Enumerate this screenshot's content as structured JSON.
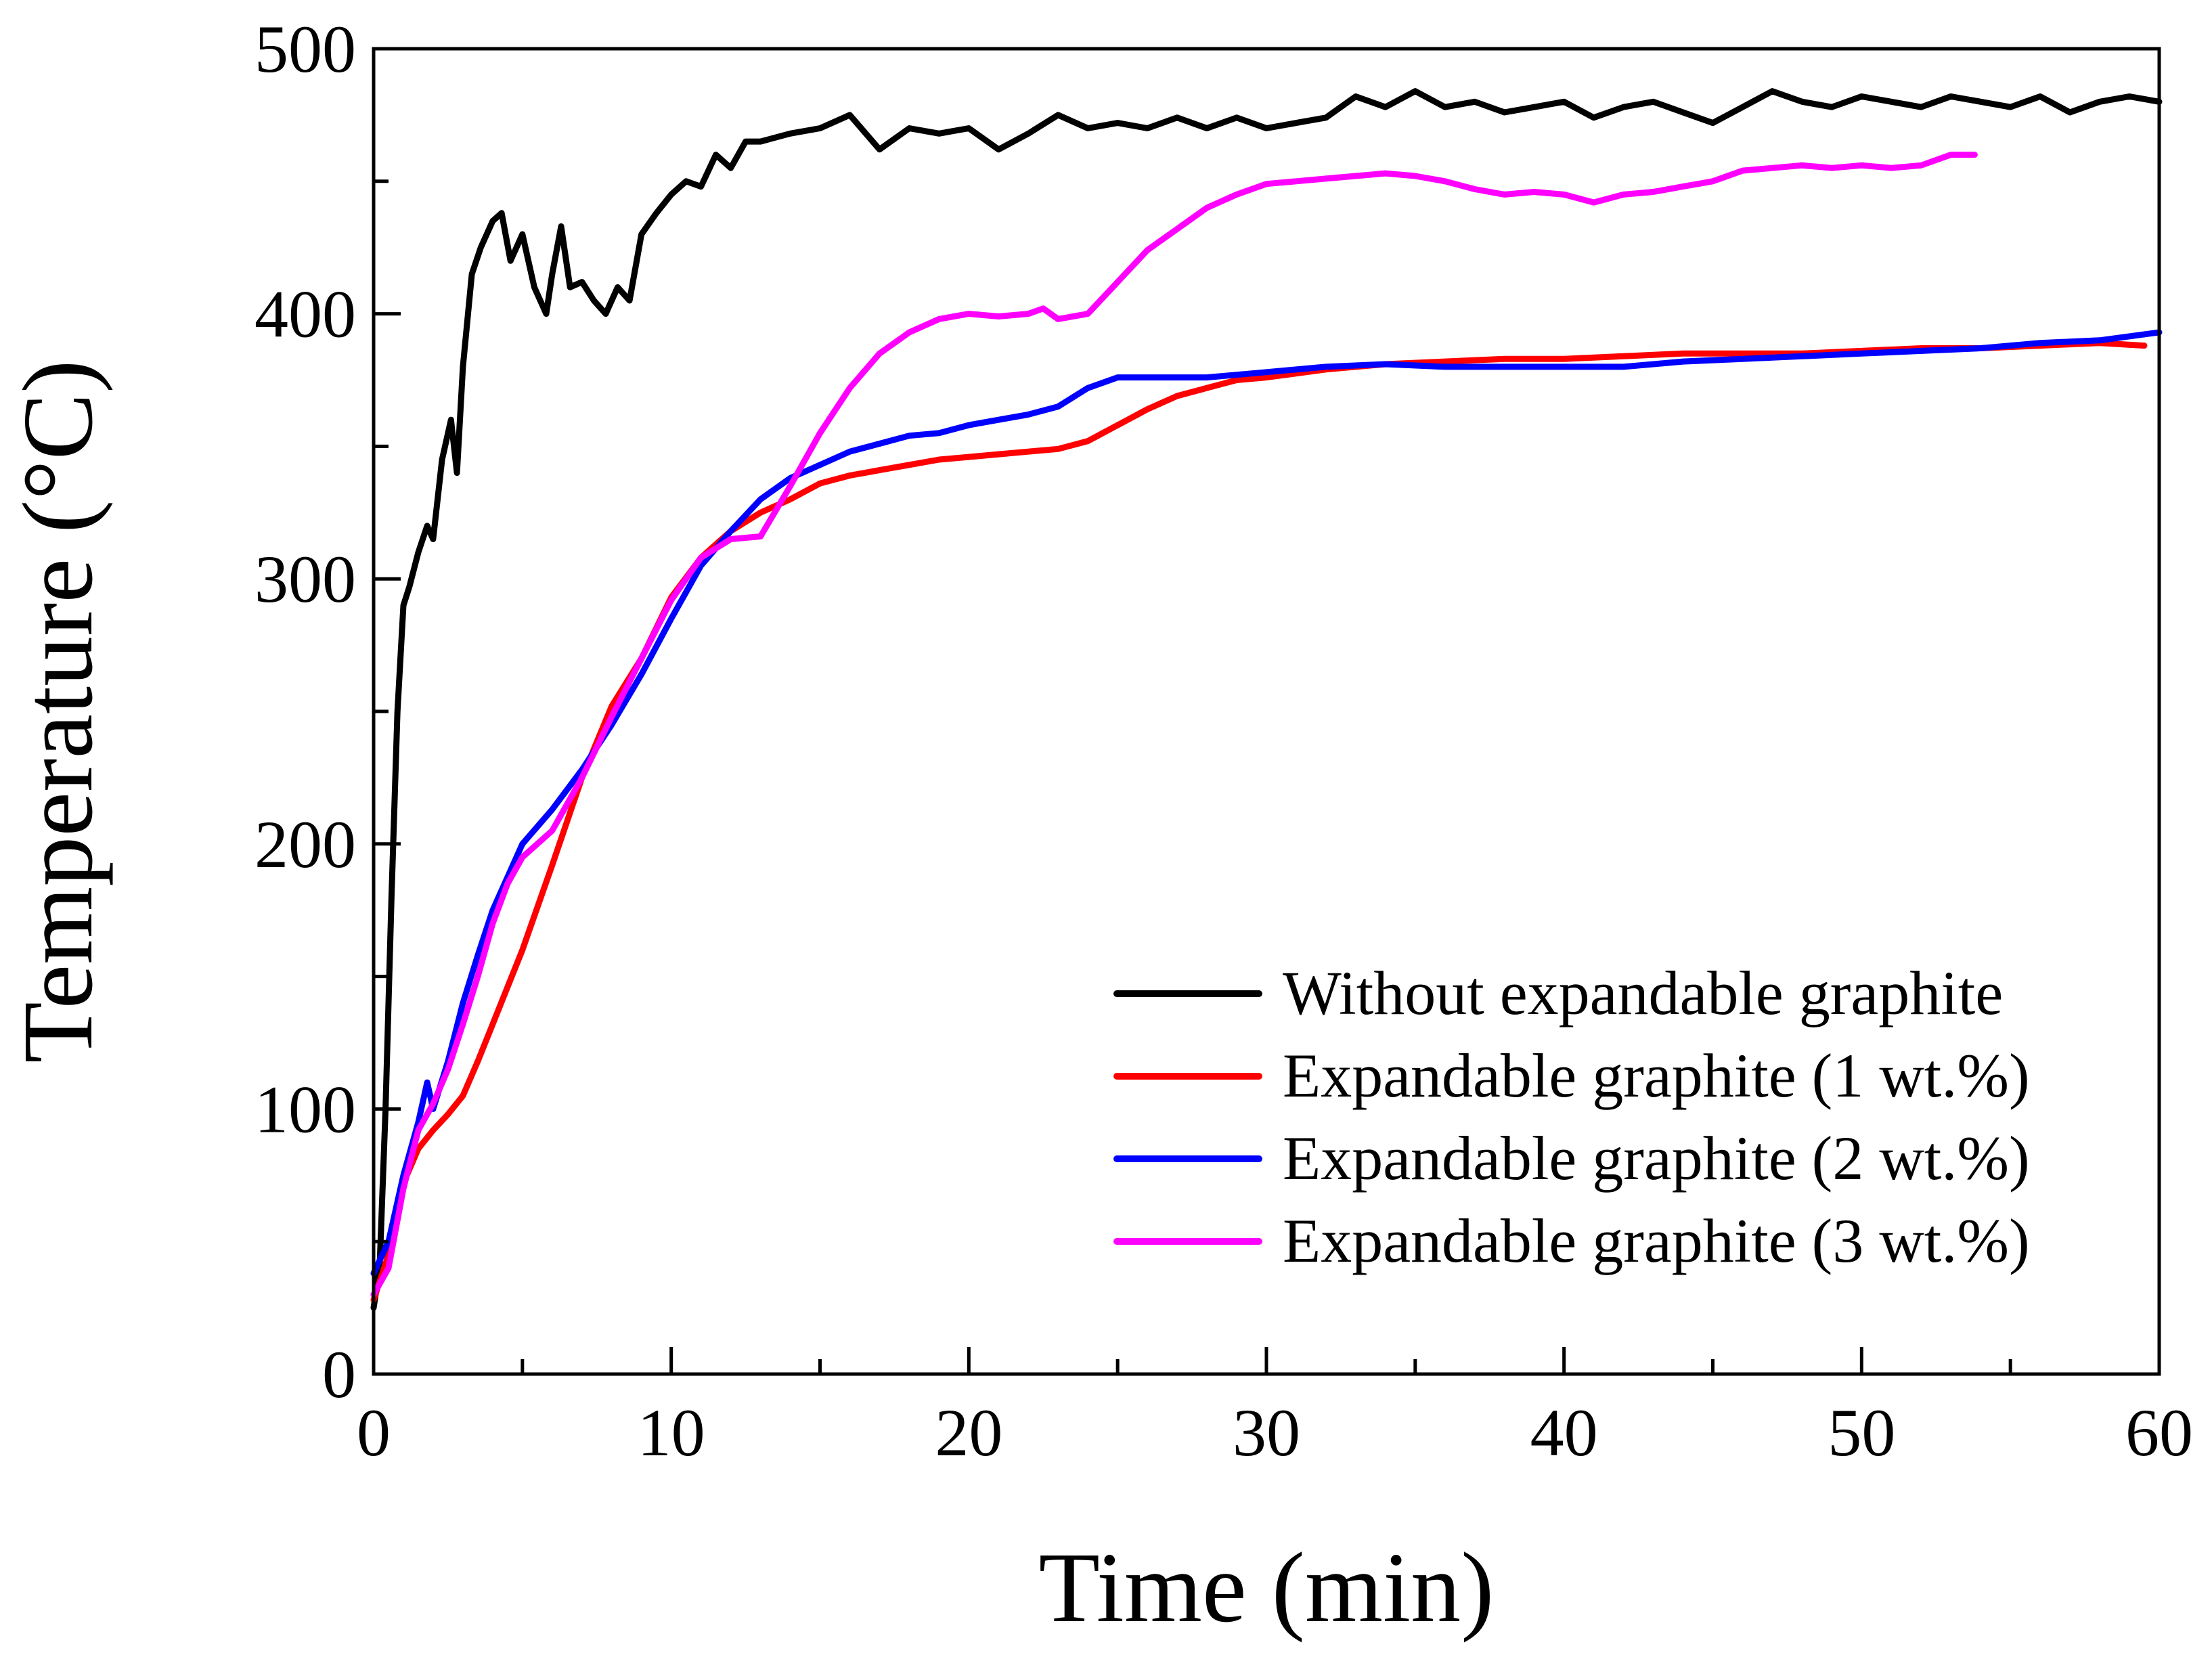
{
  "chart_data": {
    "type": "line",
    "title": "",
    "xlabel": "Time (min)",
    "ylabel": "Temperature (°C)",
    "xlim": [
      0,
      60
    ],
    "ylim": [
      0,
      500
    ],
    "xticks": [
      0,
      10,
      20,
      30,
      40,
      50,
      60
    ],
    "yticks": [
      0,
      100,
      200,
      300,
      400,
      500
    ],
    "grid": false,
    "legend_position": "bottom-right",
    "series": [
      {
        "name": "Without expandable graphite",
        "color": "#000000",
        "x": [
          0,
          0.2,
          0.4,
          0.6,
          0.8,
          1.0,
          1.2,
          1.5,
          1.8,
          2.0,
          2.3,
          2.6,
          2.8,
          3.0,
          3.3,
          3.6,
          4.0,
          4.3,
          4.6,
          5.0,
          5.4,
          5.8,
          6.0,
          6.3,
          6.6,
          7.0,
          7.4,
          7.8,
          8.2,
          8.6,
          9.0,
          9.5,
          10.0,
          10.5,
          11.0,
          11.5,
          12.0,
          12.5,
          13.0,
          14.0,
          15.0,
          16.0,
          17.0,
          18.0,
          19.0,
          20.0,
          21.0,
          22.0,
          23.0,
          24.0,
          25.0,
          26.0,
          27.0,
          28.0,
          29.0,
          30.0,
          31.0,
          32.0,
          33.0,
          34.0,
          35.0,
          36.0,
          37.0,
          38.0,
          39.0,
          40.0,
          41.0,
          42.0,
          43.0,
          44.0,
          45.0,
          46.0,
          47.0,
          48.0,
          49.0,
          50.0,
          51.0,
          52.0,
          53.0,
          54.0,
          55.0,
          56.0,
          57.0,
          58.0,
          59.0,
          60.0
        ],
        "y": [
          25,
          40,
          100,
          180,
          250,
          290,
          297,
          310,
          320,
          315,
          345,
          360,
          340,
          380,
          415,
          425,
          435,
          438,
          420,
          430,
          410,
          400,
          415,
          433,
          410,
          412,
          405,
          400,
          410,
          405,
          430,
          438,
          445,
          450,
          448,
          460,
          455,
          465,
          465,
          468,
          470,
          475,
          462,
          470,
          468,
          470,
          462,
          468,
          475,
          470,
          472,
          470,
          474,
          470,
          474,
          470,
          472,
          474,
          482,
          478,
          484,
          478,
          480,
          476,
          478,
          480,
          474,
          478,
          480,
          476,
          472,
          478,
          484,
          480,
          478,
          482,
          480,
          478,
          482,
          480,
          478,
          482,
          476,
          480,
          482,
          480
        ]
      },
      {
        "name": "Expandable graphite (1 wt.%)",
        "color": "#ff0000",
        "x": [
          0,
          0.5,
          1.0,
          1.5,
          2.0,
          2.5,
          3.0,
          3.5,
          4.0,
          5.0,
          6.0,
          7.0,
          8.0,
          9.0,
          10.0,
          11.0,
          12.0,
          13.0,
          14.0,
          15.0,
          16.0,
          17.0,
          18.0,
          19.0,
          20.0,
          21.0,
          22.0,
          23.0,
          24.0,
          25.0,
          26.0,
          27.0,
          28.0,
          29.0,
          30.0,
          32.0,
          34.0,
          36.0,
          38.0,
          40.0,
          42.0,
          44.0,
          46.0,
          48.0,
          50.0,
          52.0,
          54.0,
          56.0,
          58.0,
          59.5
        ],
        "y": [
          28,
          45,
          72,
          85,
          92,
          98,
          105,
          118,
          132,
          160,
          192,
          225,
          252,
          270,
          293,
          308,
          318,
          325,
          330,
          336,
          339,
          341,
          343,
          345,
          346,
          347,
          348,
          349,
          352,
          358,
          364,
          369,
          372,
          375,
          376,
          379,
          381,
          382,
          383,
          383,
          384,
          385,
          385,
          385,
          386,
          387,
          387,
          388,
          389,
          388
        ]
      },
      {
        "name": "Expandable graphite (2 wt.%)",
        "color": "#0000ff",
        "x": [
          0,
          0.5,
          1.0,
          1.5,
          1.8,
          2.0,
          2.5,
          3.0,
          3.5,
          4.0,
          5.0,
          6.0,
          7.0,
          8.0,
          9.0,
          10.0,
          11.0,
          12.0,
          13.0,
          14.0,
          15.0,
          16.0,
          17.0,
          18.0,
          19.0,
          20.0,
          21.0,
          22.0,
          23.0,
          24.0,
          25.0,
          26.0,
          27.0,
          28.0,
          29.0,
          30.0,
          32.0,
          34.0,
          36.0,
          38.0,
          40.0,
          42.0,
          44.0,
          46.0,
          48.0,
          50.0,
          52.0,
          54.0,
          56.0,
          58.0,
          60.0
        ],
        "y": [
          38,
          50,
          75,
          95,
          110,
          100,
          118,
          140,
          158,
          175,
          200,
          213,
          228,
          245,
          264,
          285,
          305,
          318,
          330,
          338,
          343,
          348,
          351,
          354,
          355,
          358,
          360,
          362,
          365,
          372,
          376,
          376,
          376,
          376,
          377,
          378,
          380,
          381,
          380,
          380,
          380,
          380,
          382,
          383,
          384,
          385,
          386,
          387,
          389,
          390,
          393
        ]
      },
      {
        "name": "Expandable graphite (3 wt.%)",
        "color": "#ff00ff",
        "x": [
          0,
          0.5,
          1.0,
          1.5,
          2.0,
          2.5,
          3.0,
          3.5,
          4.0,
          4.5,
          5.0,
          5.5,
          6.0,
          7.0,
          8.0,
          9.0,
          10.0,
          11.0,
          12.0,
          13.0,
          14.0,
          15.0,
          16.0,
          17.0,
          18.0,
          19.0,
          20.0,
          21.0,
          22.0,
          22.5,
          23.0,
          24.0,
          25.0,
          26.0,
          27.0,
          28.0,
          29.0,
          30.0,
          31.0,
          32.0,
          33.0,
          34.0,
          35.0,
          36.0,
          37.0,
          38.0,
          39.0,
          40.0,
          41.0,
          42.0,
          43.0,
          44.0,
          45.0,
          46.0,
          47.0,
          48.0,
          49.0,
          50.0,
          51.0,
          52.0,
          53.0,
          53.8
        ],
        "y": [
          30,
          40,
          70,
          92,
          102,
          115,
          132,
          150,
          170,
          185,
          195,
          200,
          205,
          225,
          248,
          270,
          292,
          308,
          315,
          316,
          335,
          355,
          372,
          385,
          393,
          398,
          400,
          399,
          400,
          402,
          398,
          400,
          412,
          424,
          432,
          440,
          445,
          449,
          450,
          451,
          452,
          453,
          452,
          450,
          447,
          445,
          446,
          445,
          442,
          445,
          446,
          448,
          450,
          454,
          455,
          456,
          455,
          456,
          455,
          456,
          460,
          460
        ]
      }
    ]
  }
}
